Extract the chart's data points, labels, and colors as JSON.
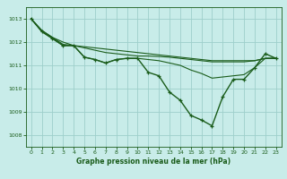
{
  "background_color": "#c8ece9",
  "grid_color": "#9ecfcb",
  "line_color": "#1a5c1a",
  "marker_color": "#1a5c1a",
  "xlabel": "Graphe pression niveau de la mer (hPa)",
  "xlabel_color": "#1a5c1a",
  "ylabel_color": "#1a5c1a",
  "tick_color": "#1a5c1a",
  "yticks": [
    1008,
    1009,
    1010,
    1011,
    1012,
    1013
  ],
  "xticks": [
    0,
    1,
    2,
    3,
    4,
    5,
    6,
    7,
    8,
    9,
    10,
    11,
    12,
    13,
    14,
    15,
    16,
    17,
    18,
    19,
    20,
    21,
    22,
    23
  ],
  "xlim": [
    -0.5,
    23.5
  ],
  "ylim": [
    1007.5,
    1013.5
  ],
  "series": [
    {
      "x": [
        0,
        1,
        2,
        3,
        4,
        5,
        6,
        7,
        8,
        9,
        10,
        11,
        12,
        13,
        14,
        15,
        16,
        17,
        18,
        19,
        20,
        21,
        22,
        23
      ],
      "y": [
        1013.0,
        1012.5,
        1012.2,
        1012.0,
        1011.85,
        1011.8,
        1011.75,
        1011.7,
        1011.65,
        1011.6,
        1011.55,
        1011.5,
        1011.45,
        1011.4,
        1011.35,
        1011.3,
        1011.25,
        1011.2,
        1011.2,
        1011.2,
        1011.2,
        1011.2,
        1011.3,
        1011.3
      ],
      "has_markers": false,
      "linewidth": 0.8
    },
    {
      "x": [
        0,
        1,
        2,
        3,
        4,
        5,
        6,
        7,
        8,
        9,
        10,
        11,
        12,
        13,
        14,
        15,
        16,
        17,
        18,
        19,
        20,
        21,
        22,
        23
      ],
      "y": [
        1013.0,
        1012.5,
        1012.2,
        1011.9,
        1011.85,
        1011.75,
        1011.65,
        1011.55,
        1011.5,
        1011.45,
        1011.4,
        1011.4,
        1011.38,
        1011.35,
        1011.3,
        1011.25,
        1011.2,
        1011.15,
        1011.15,
        1011.15,
        1011.15,
        1011.2,
        1011.3,
        1011.3
      ],
      "has_markers": false,
      "linewidth": 0.8
    },
    {
      "x": [
        0,
        1,
        2,
        3,
        4,
        5,
        6,
        7,
        8,
        9,
        10,
        11,
        12,
        13,
        14,
        15,
        16,
        17,
        18,
        19,
        20,
        21,
        22,
        23
      ],
      "y": [
        1013.0,
        1012.45,
        1012.15,
        1011.85,
        1011.85,
        1011.35,
        1011.25,
        1011.1,
        1011.25,
        1011.3,
        1011.3,
        1011.25,
        1011.2,
        1011.1,
        1011.0,
        1010.8,
        1010.65,
        1010.45,
        1010.5,
        1010.55,
        1010.6,
        1010.9,
        1011.3,
        1011.3
      ],
      "has_markers": false,
      "linewidth": 0.8
    },
    {
      "x": [
        0,
        1,
        2,
        3,
        4,
        5,
        6,
        7,
        8,
        9,
        10,
        11,
        12,
        13,
        14,
        15,
        16,
        17,
        18,
        19,
        20,
        21,
        22,
        23
      ],
      "y": [
        1013.0,
        1012.45,
        1012.15,
        1011.85,
        1011.85,
        1011.35,
        1011.25,
        1011.1,
        1011.25,
        1011.3,
        1011.3,
        1010.7,
        1010.55,
        1009.85,
        1009.5,
        1008.85,
        1008.65,
        1008.4,
        1009.65,
        1010.4,
        1010.4,
        1010.9,
        1011.5,
        1011.3
      ],
      "has_markers": true,
      "linewidth": 1.0
    }
  ]
}
